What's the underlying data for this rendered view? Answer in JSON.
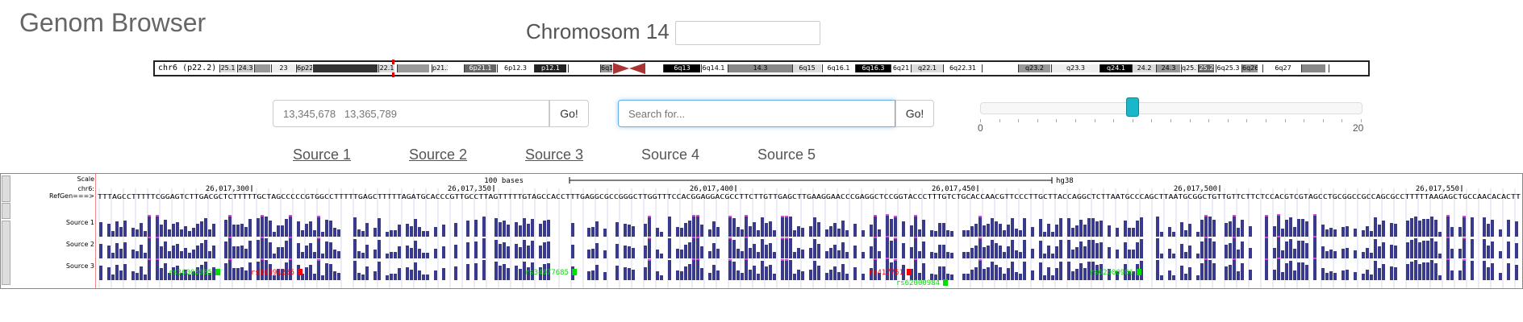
{
  "app": {
    "title": "Genom Browser"
  },
  "chromosome": {
    "title": "Chromosom 14",
    "input_value": ""
  },
  "ideogram": {
    "label": "chr6 (p22.2)",
    "bands": [
      "25.1",
      "24.3",
      "",
      "23",
      "6p22.3",
      "",
      "22.1",
      "",
      "p21.3",
      "6p21.1",
      "6p12.3",
      "p12.1",
      "",
      "6q12",
      "6q13",
      "6q14.1",
      "14.3",
      "6q15",
      "6q16.1",
      "6q16.3",
      "6q21",
      "q22.1",
      "6q22.31",
      "",
      "q23.2",
      "q23.3",
      "q24.1",
      "24.2",
      "24.3",
      "q25.1",
      "25.2",
      "6q25.3",
      "6q26",
      "6q27"
    ]
  },
  "position_search": {
    "placeholder": "13,345,678   13,365,789",
    "go_label": "Go!"
  },
  "text_search": {
    "placeholder": "Search for...",
    "go_label": "Go!"
  },
  "zoom_slider": {
    "min_label": "0",
    "max_label": "20",
    "value": 8,
    "min": 0,
    "max": 20
  },
  "sources": [
    {
      "label": "Source 1"
    },
    {
      "label": "Source 2"
    },
    {
      "label": "Source 3"
    },
    {
      "label": "Source 4"
    },
    {
      "label": "Source 5"
    }
  ],
  "tracks": {
    "scale_label": "Scale",
    "chrom_label": "chr6:",
    "refgene_label": "RefGen===>",
    "scale_text": "100 bases",
    "assembly": "hg38",
    "positions": [
      "26,017,300",
      "26,017,350",
      "26,017,400",
      "26,017,450",
      "26,017,500",
      "26,017,550"
    ],
    "sequence": "TTTAGCCTTTTTCGGAGTCTTGACGCTCTTTTTGCTAGCCCCCGTGGCCTTTTTGAGCTTTTTAGATGCACCCGTTGCCTTAGTTTTTGTAGCCACCTTTGAGGCGCCGGGCTTGGTTTCCACGGAGGACGCCTTCTTGTTGAGCTTGAAGGAACCCGAGGCTCCGGTACCCTTTGTCTGCACCAACGTTCCCTTGCTTACCAGGCTCTTAATGCCCAGCTTAATGCGGCTGTTGTTCTTCTCCACGTCGTAGCCTGCGGCCGCCAGCGCCTTTTTAAGAGCTGCCAACACACTT",
    "sources": [
      "Source 1",
      "Source 2",
      "Source 3"
    ],
    "snps": [
      {
        "id": "rs36003085",
        "color": "#00dd00"
      },
      {
        "id": "rs16891235",
        "color": "#ff0000"
      },
      {
        "id": "rs34077685",
        "color": "#00dd00"
      },
      {
        "id": "rs417751",
        "color": "#ff0000"
      },
      {
        "id": "rs62000984",
        "color": "#00dd00"
      },
      {
        "id": "rs62000986",
        "color": "#00dd00"
      }
    ]
  },
  "colors": {
    "bar": "#3a3a8c",
    "bar_top": "#e040e0",
    "snp_green": "#00dd00",
    "snp_red": "#ff0000"
  }
}
